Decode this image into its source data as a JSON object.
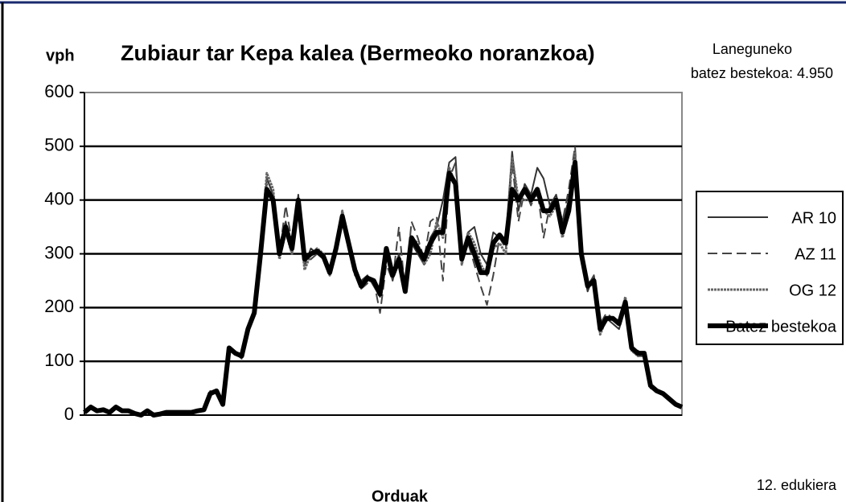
{
  "chart_data": {
    "type": "line",
    "title": "Zubiaur tar Kepa kalea (Bermeoko noranzkoa)",
    "y_label": "vph",
    "x_label": "Orduak",
    "annotation": [
      "Laneguneko",
      "batez bestekoa: 4.950"
    ],
    "footer": "12. edukiera",
    "x": [
      0,
      1,
      2,
      3,
      4,
      5,
      6,
      7,
      8,
      9,
      10,
      11,
      12,
      13,
      14,
      15,
      16,
      17,
      18,
      19,
      20,
      21,
      22,
      23,
      24,
      25,
      26,
      27,
      28,
      29,
      30,
      31,
      32,
      33,
      34,
      35,
      36,
      37,
      38,
      39,
      40,
      41,
      42,
      43,
      44,
      45,
      46,
      47,
      48,
      49,
      50,
      51,
      52,
      53,
      54,
      55,
      56,
      57,
      58,
      59,
      60,
      61,
      62,
      63,
      64,
      65,
      66,
      67,
      68,
      69,
      70,
      71,
      72,
      73,
      74,
      75,
      76,
      77,
      78,
      79,
      80,
      81,
      82,
      83,
      84,
      85,
      86,
      87,
      88,
      89,
      90,
      91,
      92,
      93,
      94,
      95
    ],
    "xlim": [
      0,
      95
    ],
    "ylim": [
      0,
      600
    ],
    "yticks": [
      0,
      100,
      200,
      300,
      400,
      500,
      600
    ],
    "grid": true,
    "legend": "right",
    "series": [
      {
        "name": "AR 10",
        "color": "#333333",
        "style": "solid",
        "width": 2,
        "values": [
          5,
          15,
          8,
          10,
          5,
          15,
          8,
          8,
          3,
          0,
          8,
          0,
          2,
          5,
          5,
          5,
          5,
          5,
          8,
          10,
          40,
          45,
          20,
          125,
          115,
          110,
          160,
          190,
          310,
          440,
          410,
          310,
          360,
          300,
          410,
          280,
          310,
          300,
          290,
          270,
          300,
          380,
          330,
          260,
          250,
          260,
          240,
          220,
          300,
          250,
          300,
          240,
          320,
          300,
          280,
          330,
          350,
          400,
          470,
          480,
          300,
          340,
          350,
          300,
          280,
          340,
          330,
          330,
          490,
          380,
          430,
          410,
          460,
          440,
          390,
          410,
          360,
          400,
          490,
          290,
          230,
          260,
          170,
          180,
          170,
          160,
          200,
          120,
          110,
          110,
          50,
          45,
          40,
          30,
          20,
          15
        ]
      },
      {
        "name": "AZ 11",
        "color": "#444444",
        "style": "dashed",
        "width": 2,
        "values": [
          5,
          14,
          8,
          10,
          5,
          14,
          8,
          8,
          3,
          0,
          8,
          0,
          2,
          5,
          5,
          5,
          5,
          5,
          8,
          12,
          45,
          40,
          20,
          120,
          115,
          105,
          160,
          195,
          300,
          430,
          390,
          300,
          390,
          320,
          380,
          280,
          290,
          300,
          290,
          260,
          300,
          360,
          310,
          270,
          235,
          245,
          250,
          190,
          280,
          250,
          350,
          230,
          360,
          330,
          290,
          360,
          370,
          250,
          440,
          470,
          300,
          320,
          280,
          240,
          205,
          260,
          330,
          310,
          470,
          360,
          420,
          390,
          420,
          330,
          390,
          380,
          360,
          420,
          500,
          300,
          240,
          260,
          170,
          190,
          180,
          170,
          220,
          120,
          120,
          110,
          55,
          45,
          40,
          30,
          20,
          15
        ]
      },
      {
        "name": "OG 12",
        "color": "#666666",
        "style": "dotted",
        "width": 3,
        "values": [
          5,
          15,
          8,
          10,
          5,
          15,
          8,
          8,
          3,
          0,
          8,
          0,
          2,
          5,
          5,
          5,
          5,
          5,
          8,
          10,
          42,
          45,
          20,
          125,
          115,
          110,
          160,
          190,
          300,
          450,
          420,
          290,
          340,
          300,
          390,
          270,
          300,
          310,
          300,
          260,
          310,
          380,
          310,
          270,
          240,
          250,
          250,
          230,
          310,
          260,
          280,
          240,
          330,
          320,
          280,
          300,
          360,
          330,
          460,
          430,
          280,
          340,
          320,
          280,
          260,
          310,
          320,
          300,
          480,
          400,
          400,
          400,
          410,
          380,
          370,
          390,
          330,
          380,
          490,
          300,
          240,
          250,
          150,
          180,
          180,
          170,
          220,
          120,
          110,
          110,
          55,
          45,
          40,
          30,
          20,
          15
        ]
      },
      {
        "name": "Batez bestekoa",
        "color": "#000000",
        "style": "solid",
        "width": 6,
        "values": [
          5,
          15,
          8,
          10,
          5,
          15,
          8,
          8,
          3,
          0,
          8,
          0,
          2,
          5,
          5,
          5,
          5,
          5,
          8,
          10,
          40,
          45,
          20,
          125,
          115,
          110,
          160,
          190,
          300,
          420,
          400,
          300,
          350,
          310,
          400,
          290,
          300,
          305,
          295,
          265,
          310,
          370,
          320,
          270,
          240,
          255,
          250,
          225,
          310,
          260,
          290,
          230,
          330,
          310,
          290,
          320,
          340,
          340,
          450,
          430,
          290,
          330,
          300,
          265,
          265,
          320,
          335,
          320,
          420,
          400,
          420,
          400,
          420,
          380,
          380,
          400,
          340,
          380,
          470,
          300,
          240,
          250,
          160,
          180,
          180,
          170,
          210,
          125,
          115,
          115,
          55,
          45,
          40,
          30,
          20,
          15
        ]
      }
    ]
  }
}
